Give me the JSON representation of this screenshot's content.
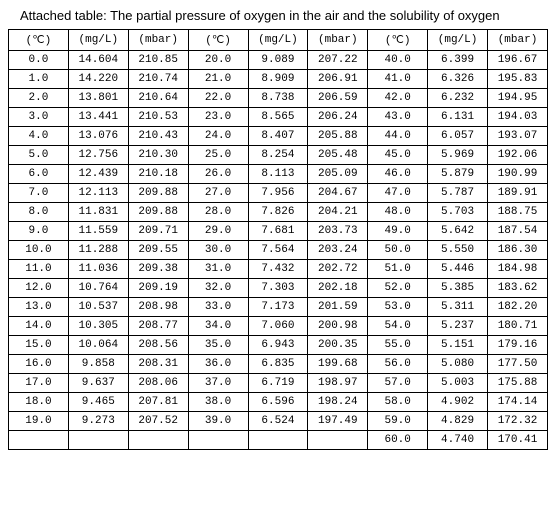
{
  "title": "Attached table: The partial pressure of oxygen in the air and the solubility of oxygen",
  "columns": [
    "(℃)",
    "(mg/L)",
    "(mbar)",
    "(℃)",
    "(mg/L)",
    "(mbar)",
    "(℃)",
    "(mg/L)",
    "(mbar)"
  ],
  "rows": [
    [
      "0.0",
      "14.604",
      "210.85",
      "20.0",
      "9.089",
      "207.22",
      "40.0",
      "6.399",
      "196.67"
    ],
    [
      "1.0",
      "14.220",
      "210.74",
      "21.0",
      "8.909",
      "206.91",
      "41.0",
      "6.326",
      "195.83"
    ],
    [
      "2.0",
      "13.801",
      "210.64",
      "22.0",
      "8.738",
      "206.59",
      "42.0",
      "6.232",
      "194.95"
    ],
    [
      "3.0",
      "13.441",
      "210.53",
      "23.0",
      "8.565",
      "206.24",
      "43.0",
      "6.131",
      "194.03"
    ],
    [
      "4.0",
      "13.076",
      "210.43",
      "24.0",
      "8.407",
      "205.88",
      "44.0",
      "6.057",
      "193.07"
    ],
    [
      "5.0",
      "12.756",
      "210.30",
      "25.0",
      "8.254",
      "205.48",
      "45.0",
      "5.969",
      "192.06"
    ],
    [
      "6.0",
      "12.439",
      "210.18",
      "26.0",
      "8.113",
      "205.09",
      "46.0",
      "5.879",
      "190.99"
    ],
    [
      "7.0",
      "12.113",
      "209.88",
      "27.0",
      "7.956",
      "204.67",
      "47.0",
      "5.787",
      "189.91"
    ],
    [
      "8.0",
      "11.831",
      "209.88",
      "28.0",
      "7.826",
      "204.21",
      "48.0",
      "5.703",
      "188.75"
    ],
    [
      "9.0",
      "11.559",
      "209.71",
      "29.0",
      "7.681",
      "203.73",
      "49.0",
      "5.642",
      "187.54"
    ],
    [
      "10.0",
      "11.288",
      "209.55",
      "30.0",
      "7.564",
      "203.24",
      "50.0",
      "5.550",
      "186.30"
    ],
    [
      "11.0",
      "11.036",
      "209.38",
      "31.0",
      "7.432",
      "202.72",
      "51.0",
      "5.446",
      "184.98"
    ],
    [
      "12.0",
      "10.764",
      "209.19",
      "32.0",
      "7.303",
      "202.18",
      "52.0",
      "5.385",
      "183.62"
    ],
    [
      "13.0",
      "10.537",
      "208.98",
      "33.0",
      "7.173",
      "201.59",
      "53.0",
      "5.311",
      "182.20"
    ],
    [
      "14.0",
      "10.305",
      "208.77",
      "34.0",
      "7.060",
      "200.98",
      "54.0",
      "5.237",
      "180.71"
    ],
    [
      "15.0",
      "10.064",
      "208.56",
      "35.0",
      "6.943",
      "200.35",
      "55.0",
      "5.151",
      "179.16"
    ],
    [
      "16.0",
      "9.858",
      "208.31",
      "36.0",
      "6.835",
      "199.68",
      "56.0",
      "5.080",
      "177.50"
    ],
    [
      "17.0",
      "9.637",
      "208.06",
      "37.0",
      "6.719",
      "198.97",
      "57.0",
      "5.003",
      "175.88"
    ],
    [
      "18.0",
      "9.465",
      "207.81",
      "38.0",
      "6.596",
      "198.24",
      "58.0",
      "4.902",
      "174.14"
    ],
    [
      "19.0",
      "9.273",
      "207.52",
      "39.0",
      "6.524",
      "197.49",
      "59.0",
      "4.829",
      "172.32"
    ],
    [
      "",
      "",
      "",
      "",
      "",
      "",
      "60.0",
      "4.740",
      "170.41"
    ]
  ]
}
